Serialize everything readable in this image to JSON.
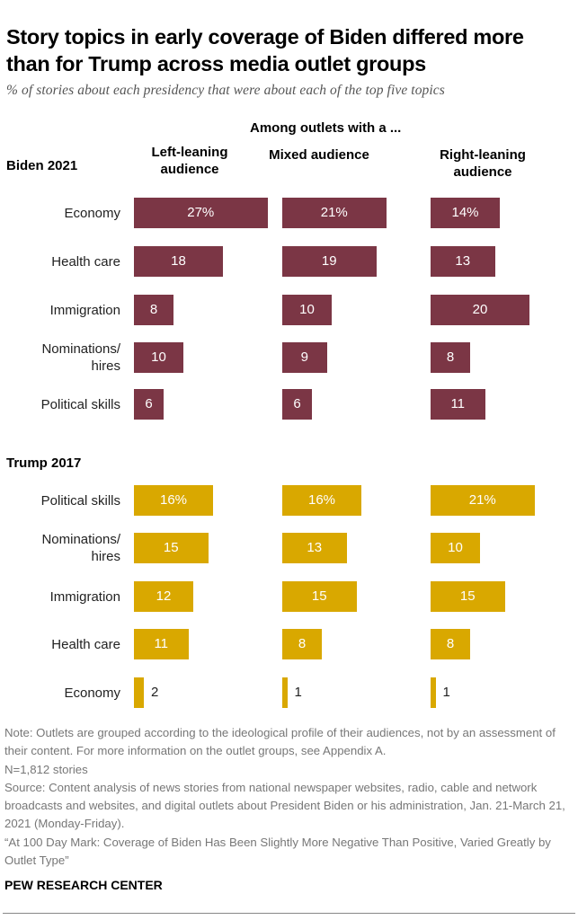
{
  "title": "Story topics in early coverage of Biden differed more than for Trump across media outlet groups",
  "subtitle": "% of stories about each presidency that were about each of the top five topics",
  "chart_data": {
    "type": "bar",
    "group_header": "Among outlets with a ...",
    "columns": [
      "Left-leaning audience",
      "Mixed audience",
      "Right-leaning audience"
    ],
    "panels": [
      {
        "name": "Biden 2021",
        "color": "#7b3645",
        "categories": [
          "Economy",
          "Health care",
          "Immigration",
          "Nominations/ hires",
          "Political skills"
        ],
        "series": [
          {
            "name": "Left-leaning audience",
            "values": [
              27,
              18,
              8,
              10,
              6
            ]
          },
          {
            "name": "Mixed audience",
            "values": [
              21,
              19,
              10,
              9,
              6
            ]
          },
          {
            "name": "Right-leaning audience",
            "values": [
              14,
              13,
              20,
              8,
              11
            ]
          }
        ]
      },
      {
        "name": "Trump 2017",
        "color": "#d9a800",
        "categories": [
          "Political skills",
          "Nominations/ hires",
          "Immigration",
          "Health care",
          "Economy"
        ],
        "series": [
          {
            "name": "Left-leaning audience",
            "values": [
              16,
              15,
              12,
              11,
              2
            ]
          },
          {
            "name": "Mixed audience",
            "values": [
              16,
              13,
              15,
              8,
              1
            ]
          },
          {
            "name": "Right-leaning audience",
            "values": [
              21,
              10,
              15,
              8,
              1
            ]
          }
        ]
      }
    ],
    "unit_suffix_first_row": "%"
  },
  "notes": [
    "Note: Outlets are grouped according to the ideological profile of their audiences, not by an assessment of their content. For more information on the outlet groups, see Appendix A.",
    "N=1,812 stories",
    "Source: Content analysis of news stories from national newspaper websites, radio, cable and network broadcasts and websites, and digital outlets about President Biden or his administration, Jan. 21-March 21, 2021 (Monday-Friday).",
    "“At 100 Day Mark: Coverage of Biden Has Been Slightly More Negative Than Positive, Varied Greatly by Outlet Type”"
  ],
  "brand": "PEW RESEARCH CENTER"
}
